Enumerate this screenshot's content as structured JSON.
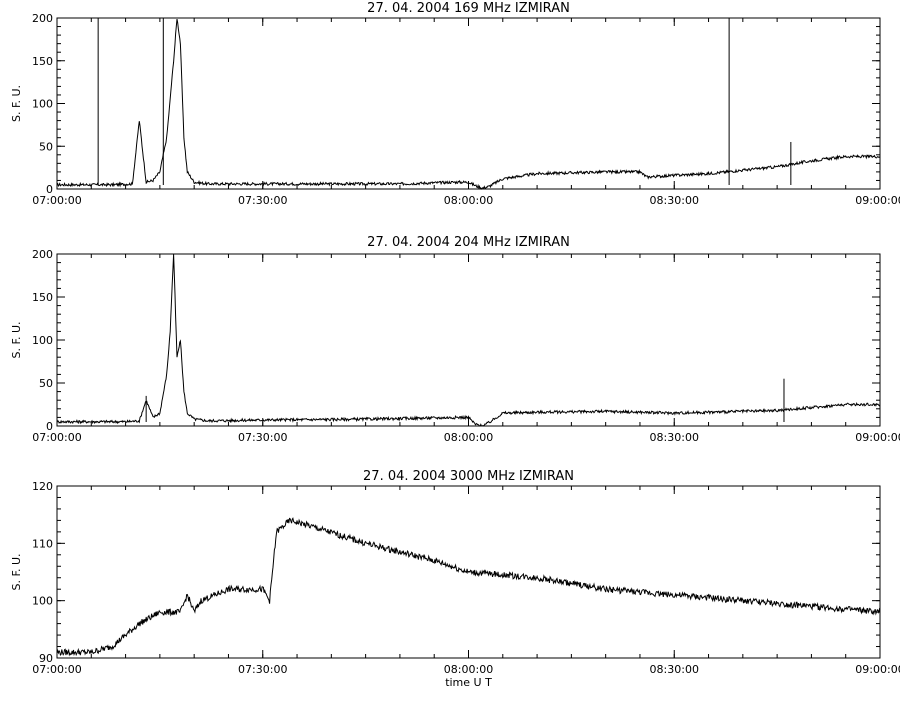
{
  "chart_data": [
    {
      "type": "line",
      "title": "27.  04.  2004    169 MHz    IZMIRAN",
      "ylabel": "S. F. U.",
      "xlabel": "",
      "xlim": [
        "07:00:00",
        "09:00:00"
      ],
      "ylim": [
        0,
        200
      ],
      "x_ticks": [
        "07:00:00",
        "07:30:00",
        "08:00:00",
        "08:30:00",
        "09:00:00"
      ],
      "y_ticks": [
        "0",
        "50",
        "100",
        "150",
        "200"
      ],
      "series": [
        {
          "x": [
            "07:00:00",
            "07:04:00",
            "07:08:00",
            "07:11:00",
            "07:12:00",
            "07:13:00",
            "07:14:00",
            "07:15:00",
            "07:16:00",
            "07:17:00",
            "07:17:30",
            "07:18:00",
            "07:18:30",
            "07:19:00",
            "07:20:00",
            "07:22:00",
            "07:30:00",
            "07:40:00",
            "07:50:00",
            "07:58:00",
            "08:00:00",
            "08:01:00",
            "08:02:00",
            "08:03:00",
            "08:05:00",
            "08:10:00",
            "08:20:00",
            "08:25:00",
            "08:26:00",
            "08:30:00",
            "08:35:00",
            "08:40:00",
            "08:45:00",
            "08:50:00",
            "08:55:00",
            "09:00:00"
          ],
          "y": [
            5,
            5,
            5,
            6,
            80,
            8,
            10,
            20,
            60,
            150,
            200,
            170,
            60,
            20,
            8,
            6,
            6,
            6,
            6,
            8,
            8,
            4,
            1,
            3,
            12,
            18,
            20,
            20,
            14,
            16,
            18,
            22,
            26,
            33,
            38,
            38
          ]
        }
      ],
      "spikes": [
        {
          "x": "07:06:00",
          "y": 200
        },
        {
          "x": "07:15:30",
          "y": 200
        },
        {
          "x": "08:38:00",
          "y": 200
        },
        {
          "x": "08:47:00",
          "y": 55
        }
      ]
    },
    {
      "type": "line",
      "title": "27.  04.  2004    204 MHz    IZMIRAN",
      "ylabel": "S. F. U.",
      "xlabel": "",
      "xlim": [
        "07:00:00",
        "09:00:00"
      ],
      "ylim": [
        0,
        200
      ],
      "x_ticks": [
        "07:00:00",
        "07:30:00",
        "08:00:00",
        "08:30:00",
        "09:00:00"
      ],
      "y_ticks": [
        "0",
        "50",
        "100",
        "150",
        "200"
      ],
      "series": [
        {
          "x": [
            "07:00:00",
            "07:10:00",
            "07:12:00",
            "07:13:00",
            "07:14:00",
            "07:15:00",
            "07:16:00",
            "07:16:30",
            "07:17:00",
            "07:17:30",
            "07:18:00",
            "07:18:30",
            "07:19:00",
            "07:20:00",
            "07:22:00",
            "07:30:00",
            "07:45:00",
            "07:59:00",
            "08:00:00",
            "08:01:00",
            "08:02:00",
            "08:03:00",
            "08:05:00",
            "08:10:00",
            "08:20:00",
            "08:30:00",
            "08:45:00",
            "08:55:00",
            "09:00:00"
          ],
          "y": [
            5,
            5,
            6,
            30,
            10,
            15,
            60,
            110,
            200,
            80,
            100,
            40,
            15,
            8,
            6,
            7,
            8,
            10,
            10,
            2,
            0,
            4,
            15,
            16,
            17,
            15,
            18,
            25,
            25
          ]
        }
      ],
      "spikes": [
        {
          "x": "07:13:00",
          "y": 35
        },
        {
          "x": "08:46:00",
          "y": 55
        }
      ]
    },
    {
      "type": "line",
      "title": "27.  04.  2004    3000 MHz    IZMIRAN",
      "ylabel": "S. F. U.",
      "xlabel": "time  U T",
      "xlim": [
        "07:00:00",
        "09:00:00"
      ],
      "ylim": [
        90,
        120
      ],
      "x_ticks": [
        "07:00:00",
        "07:30:00",
        "08:00:00",
        "08:30:00",
        "09:00:00"
      ],
      "y_ticks": [
        "90",
        "100",
        "110",
        "120"
      ],
      "series": [
        {
          "x": [
            "07:00:00",
            "07:05:00",
            "07:08:00",
            "07:12:00",
            "07:15:00",
            "07:18:00",
            "07:19:00",
            "07:20:00",
            "07:21:00",
            "07:25:00",
            "07:28:00",
            "07:30:00",
            "07:31:00",
            "07:32:00",
            "07:34:00",
            "07:37:00",
            "07:45:00",
            "07:55:00",
            "08:00:00",
            "08:10:00",
            "08:20:00",
            "08:30:00",
            "08:40:00",
            "08:50:00",
            "09:00:00"
          ],
          "y": [
            91,
            91,
            92,
            96,
            98,
            98,
            101,
            98,
            100,
            102,
            102,
            102,
            100,
            112,
            114,
            113,
            110,
            107,
            105,
            104,
            102,
            101,
            100,
            99,
            98
          ]
        }
      ],
      "spikes": []
    }
  ]
}
